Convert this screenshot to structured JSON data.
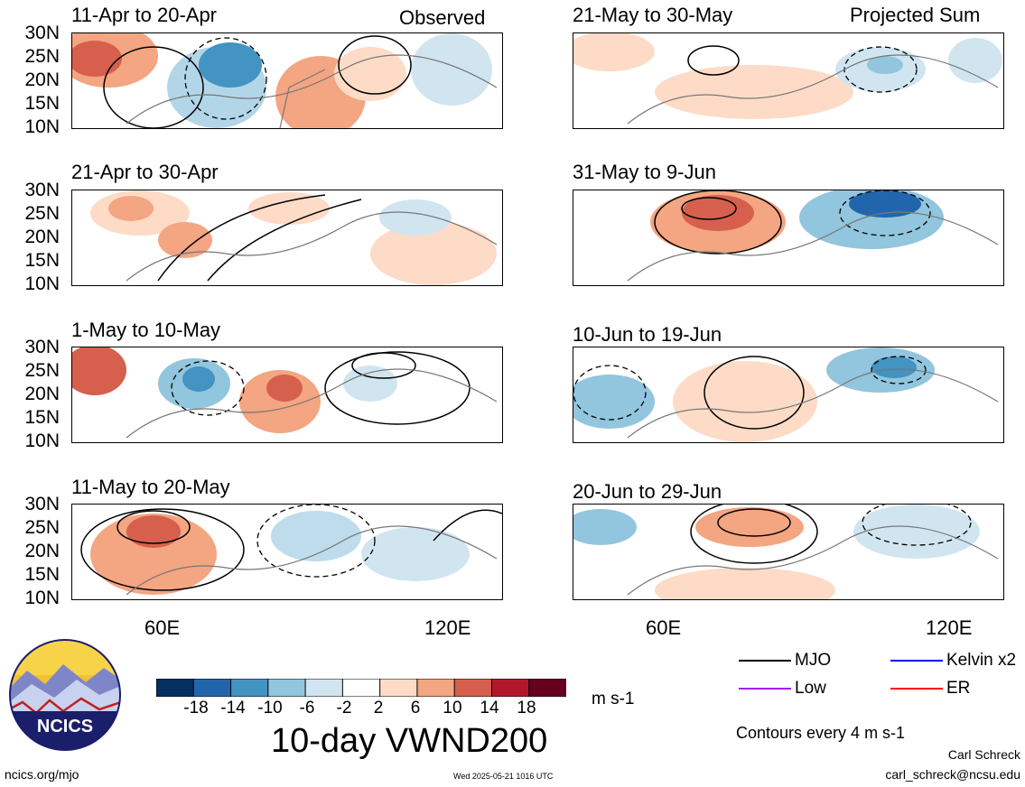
{
  "corner_left": "Observed",
  "corner_right": "Projected Sum",
  "panels_left": [
    "11-Apr to 20-Apr",
    "21-Apr to 30-Apr",
    "1-May to 10-May",
    "11-May to 20-May"
  ],
  "panels_right": [
    "21-May to 30-May",
    "31-May to 9-Jun",
    "10-Jun to 19-Jun",
    "20-Jun to 29-Jun"
  ],
  "lat_labels": [
    "30N",
    "25N",
    "20N",
    "15N",
    "10N"
  ],
  "lon_labels": [
    "60E",
    "120E"
  ],
  "colorbar": {
    "labels": [
      "-18",
      "-14",
      "-10",
      "-6",
      "-2",
      "2",
      "6",
      "10",
      "14",
      "18"
    ],
    "colors": [
      "#053061",
      "#2166ac",
      "#4393c3",
      "#92c5de",
      "#d1e5f0",
      "#ffffff",
      "#fddbc7",
      "#f4a582",
      "#d6604d",
      "#b2182b",
      "#67001f"
    ],
    "units": "m s-1"
  },
  "title": "10-day VWND200",
  "legend": {
    "mjo": "MJO",
    "kelvin": "Kelvin x2",
    "low": "Low",
    "er": "ER",
    "contours": "Contours every 4 m s-1",
    "colors": {
      "mjo": "#000000",
      "kelvin": "#0000ff",
      "low": "#a020f0",
      "er": "#ff0000"
    }
  },
  "logo_text": "NCICS",
  "footer": {
    "url": "ncics.org/mjo",
    "timestamp": "Wed 2025-05-21 1016 UTC",
    "author": "Carl Schreck",
    "email": "carl_schreck@ncsu.edu"
  }
}
